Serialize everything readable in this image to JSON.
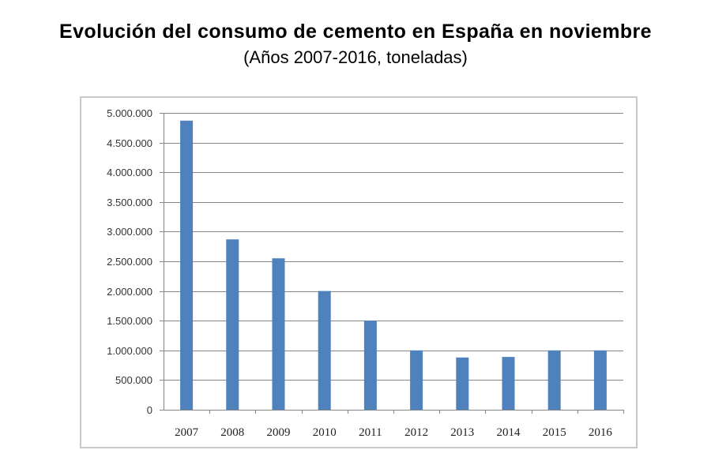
{
  "header": {
    "title": "Evolución del consumo de cemento en España en noviembre",
    "subtitle": "(Años 2007-2016, toneladas)"
  },
  "chart_data": {
    "type": "bar",
    "title": "Evolución del consumo de cemento en España en noviembre",
    "subtitle": "(Años 2007-2016, toneladas)",
    "xlabel": "",
    "ylabel": "",
    "categories": [
      "2007",
      "2008",
      "2009",
      "2010",
      "2011",
      "2012",
      "2013",
      "2014",
      "2015",
      "2016"
    ],
    "values": [
      4870000,
      2870000,
      2550000,
      2000000,
      1500000,
      1000000,
      880000,
      890000,
      1000000,
      1000000
    ],
    "ylim": [
      0,
      5000000
    ],
    "yticks": [
      0,
      500000,
      1000000,
      1500000,
      2000000,
      2500000,
      3000000,
      3500000,
      4000000,
      4500000,
      5000000
    ],
    "ytick_labels": [
      "0",
      "500.000",
      "1.000.000",
      "1.500.000",
      "2.000.000",
      "2.500.000",
      "3.000.000",
      "3.500.000",
      "4.000.000",
      "4.500.000",
      "5.000.000"
    ],
    "grid": true,
    "legend": "none",
    "bar_color": "#4f81bd",
    "grid_color": "#868686"
  }
}
